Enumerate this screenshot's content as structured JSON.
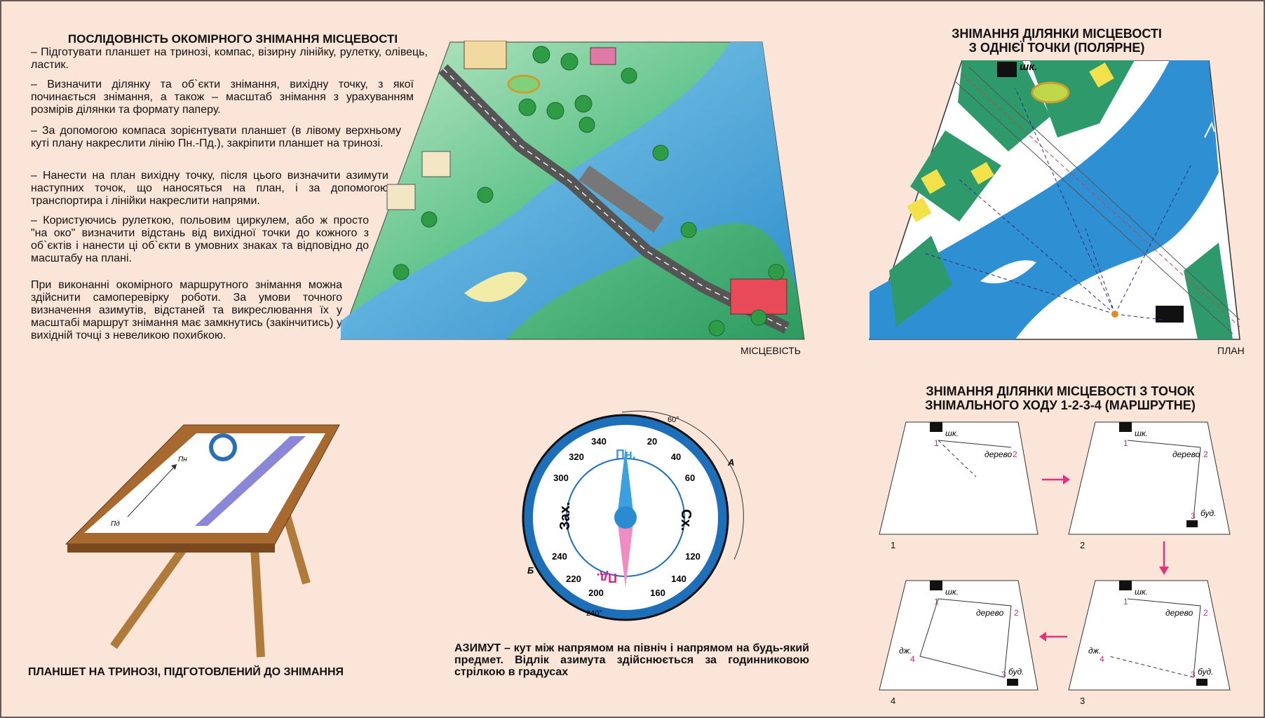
{
  "text_block": {
    "heading": "ПОСЛІДОВНІСТЬ ОКОМІРНОГО ЗНІМАННЯ МІСЦЕВОСТІ",
    "steps": [
      " – Підготувати планшет на тринозі, компас, візирну лінійку, рулетку, олівець, ластик.",
      " – Визначити ділянку та об`єкти знімання, вихідну точку, з якої починається знімання, а також – масштаб знімання з урахуванням розмірів ділянки та формату паперу.",
      " – За допомогою компаса зорієнтувати планшет (в лівому верхньому куті плану накреслити лінію Пн.-Пд.), закріпити планшет на тринозі.",
      " – Нанести на план вихідну точку, після цього визначити азимути наступних точок, що наносяться на план, і за допомогою транспортира і лінійки накреслити напрями.",
      " – Користуючись рулеткою, польовим циркулем, або ж просто \"на око\" визначити відстань від вихідної точки до кожного з об`єктів і нанести ці об`єкти в умовних знаках та відповідно до масштабу на плані."
    ],
    "note": "При виконанні окомірного маршрутного знімання можна здійснити самоперевірку роботи. За умови точного визначення азимутів, відстаней та викреслювання їх у масштабі маршрут знімання має замкнутись (закінчитись) у вихідній точці з невеликою похибкою."
  },
  "terrain": {
    "caption": "МІСЦЕВІСТЬ"
  },
  "polar": {
    "title_line1": "ЗНІМАННЯ ДІЛЯНКИ МІСЦЕВОСТІ",
    "title_line2": "З ОДНІЄЇ ТОЧКИ (ПОЛЯРНЕ)",
    "caption": "ПЛАН",
    "school_label": "шк."
  },
  "route": {
    "title_line1": "ЗНІМАННЯ ДІЛЯНКИ МІСЦЕВОСТІ З ТОЧОК",
    "title_line2": "ЗНІМАЛЬНОГО ХОДУ 1-2-3-4 (МАРШРУТНЕ)",
    "label_school": "шк.",
    "label_tree": "дерево",
    "label_building": "буд.",
    "label_spring": "дж.",
    "step_numbers": [
      "1",
      "2",
      "3",
      "4"
    ],
    "point_numbers": [
      "1",
      "2",
      "3",
      "4"
    ]
  },
  "tripod": {
    "caption": "ПЛАНШЕТ НА ТРИНОЗІ, ПІДГОТОВЛЕНИЙ ДО ЗНІМАННЯ",
    "north_label": "Пн",
    "south_label": "Пд"
  },
  "compass": {
    "north": "Пн.",
    "south": "Пд.",
    "east": "Сх.",
    "west": "Зах.",
    "degree_labels": [
      "20",
      "40",
      "60",
      "120",
      "140",
      "160",
      "200",
      "220",
      "240",
      "300",
      "320",
      "340"
    ],
    "arc_a_angle": "60°",
    "arc_b_angle": "240°",
    "point_a": "А",
    "point_b": "Б"
  },
  "azimuth_definition": "АЗИМУТ – кут між напрямом на північ і напрямом на будь-який предмет. Відлік азимута здійснюється за годинниковою стрілкою в градусах",
  "colors": {
    "background": "#fbe5d8",
    "water": "#2f8fd3",
    "vegetation_plan": "#2e9a6c",
    "buildings_plan": "#f3e14a",
    "compass_ring": "#1e6fba",
    "north_needle": "#3aa0e0",
    "south_needle": "#f08cc0",
    "arrow_pink": "#e6327e"
  }
}
